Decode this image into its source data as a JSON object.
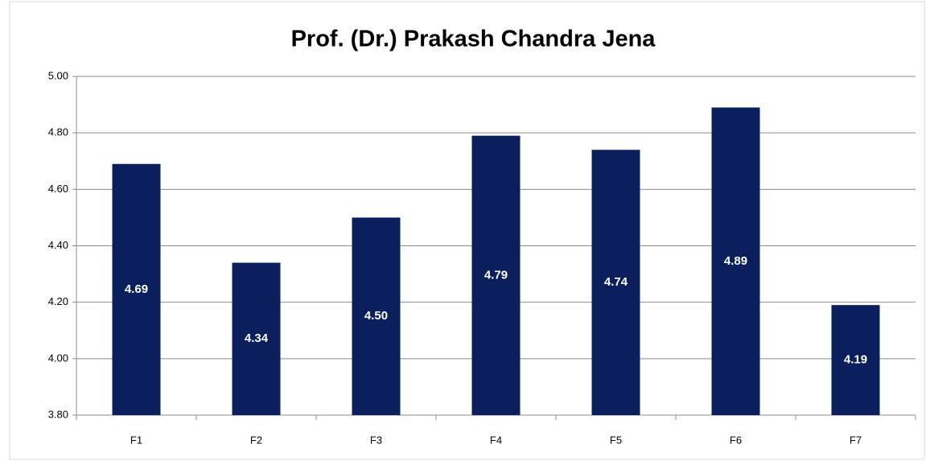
{
  "chart_data": {
    "type": "bar",
    "title": "Prof. (Dr.) Prakash Chandra Jena",
    "categories": [
      "F1",
      "F2",
      "F3",
      "F4",
      "F5",
      "F6",
      "F7"
    ],
    "values": [
      4.69,
      4.34,
      4.5,
      4.79,
      4.74,
      4.89,
      4.19
    ],
    "value_labels": [
      "4.69",
      "4.34",
      "4.50",
      "4.79",
      "4.74",
      "4.89",
      "4.19"
    ],
    "color": "#0b1f5c",
    "ylim": [
      3.8,
      5.0
    ],
    "yticks": [
      {
        "value": 3.8,
        "label": "3.80"
      },
      {
        "value": 4.0,
        "label": "4.00"
      },
      {
        "value": 4.2,
        "label": "4.20"
      },
      {
        "value": 4.4,
        "label": "4.40"
      },
      {
        "value": 4.6,
        "label": "4.60"
      },
      {
        "value": 4.8,
        "label": "4.80"
      },
      {
        "value": 5.0,
        "label": "5.00"
      }
    ],
    "grid": true
  }
}
